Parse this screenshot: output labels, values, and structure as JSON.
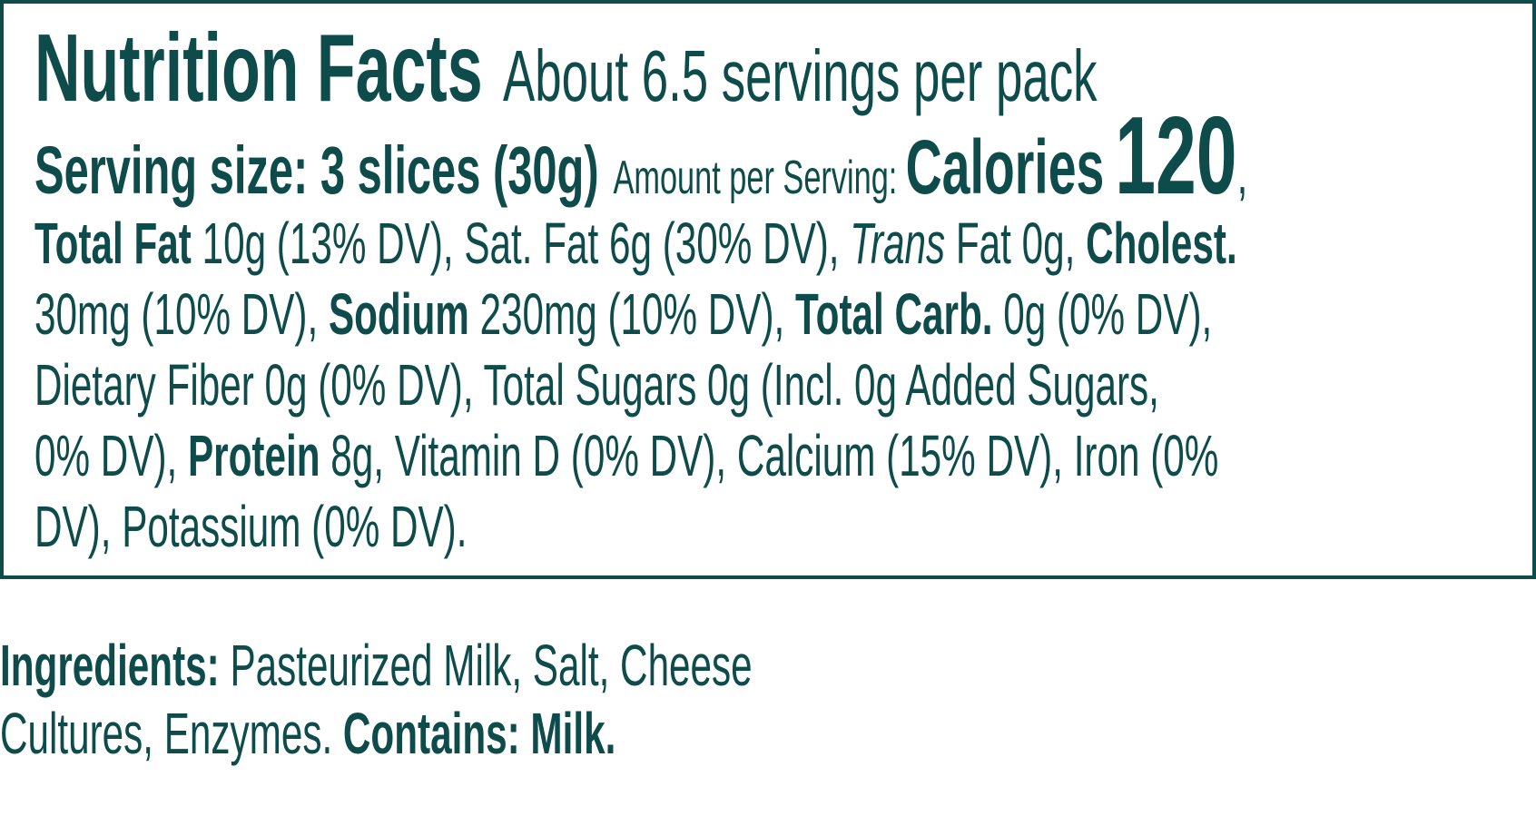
{
  "nutrition_facts": {
    "title": "Nutrition Facts",
    "servings": "About 6.5 servings per pack",
    "serving_line": [
      "Serving size: 3 slices (30g)",
      "Amount per Serving:",
      "Calories",
      "120",
      ","
    ],
    "details": [
      [
        "Total Fat",
        " 10g (13% DV), Sat. Fat 6g (30% DV), ",
        "Trans",
        " Fat 0g, ",
        "Cholest."
      ],
      [
        "30mg (10% DV), ",
        "Sodium",
        " 230mg (10% DV), ",
        "Total Carb.",
        " 0g (0% DV),"
      ],
      [
        "Dietary Fiber 0g (0% DV), Total Sugars 0g (Incl. 0g Added Sugars,"
      ],
      [
        "0% DV), ",
        "Protein",
        " 8g, Vitamin D (0% DV), Calcium (15% DV), Iron (0%"
      ],
      [
        "DV), Potassium (0% DV)."
      ]
    ]
  },
  "ingredients": [
    [
      "Ingredients:",
      " Pasteurized Milk, Salt, Cheese"
    ],
    [
      "Cultures, Enzymes. ",
      "Contains: Milk."
    ]
  ]
}
